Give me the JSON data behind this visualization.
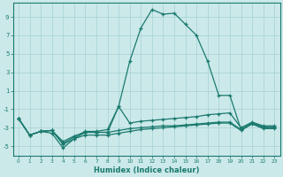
{
  "xlabel": "Humidex (Indice chaleur)",
  "ylabel": "",
  "bg_color": "#cce9ea",
  "grid_color": "#aad4d6",
  "line_color": "#1a7a6e",
  "xlim": [
    -0.5,
    23.5
  ],
  "ylim": [
    -6,
    10.5
  ],
  "yticks": [
    -5,
    -3,
    -1,
    1,
    3,
    5,
    7,
    9
  ],
  "xticks": [
    0,
    1,
    2,
    3,
    4,
    5,
    6,
    7,
    8,
    9,
    10,
    11,
    12,
    13,
    14,
    15,
    16,
    17,
    18,
    19,
    20,
    21,
    22,
    23
  ],
  "series": [
    {
      "x": [
        0,
        1,
        2,
        3,
        4,
        5,
        6,
        7,
        8,
        9,
        10,
        11,
        12,
        13,
        14,
        15,
        16,
        17,
        18,
        19,
        20,
        21,
        22,
        23
      ],
      "y": [
        -2,
        -3.8,
        -3.4,
        -3.3,
        -4.5,
        -3.9,
        -3.5,
        -3.5,
        -3.5,
        -3.3,
        -3.1,
        -3.0,
        -2.9,
        -2.8,
        -2.8,
        -2.7,
        -2.6,
        -2.5,
        -2.4,
        -2.4,
        -3.2,
        -2.5,
        -3.0,
        -3.0
      ]
    },
    {
      "x": [
        0,
        1,
        2,
        3,
        4,
        5,
        6,
        7,
        8,
        9,
        10,
        11,
        12,
        13,
        14,
        15,
        16,
        17,
        18,
        19,
        20,
        21,
        22,
        23
      ],
      "y": [
        -2,
        -3.8,
        -3.4,
        -3.6,
        -5.2,
        -4.2,
        -3.8,
        -3.8,
        -3.8,
        -3.6,
        -3.4,
        -3.2,
        -3.1,
        -3.0,
        -2.9,
        -2.8,
        -2.7,
        -2.6,
        -2.5,
        -2.5,
        -3.3,
        -2.6,
        -3.1,
        -3.1
      ]
    },
    {
      "x": [
        0,
        1,
        2,
        3,
        4,
        5,
        6,
        7,
        8,
        9,
        10,
        11,
        12,
        13,
        14,
        15,
        16,
        17,
        18,
        19,
        20,
        21,
        22,
        23
      ],
      "y": [
        -2,
        -3.8,
        -3.4,
        -3.3,
        -4.7,
        -4.0,
        -3.4,
        -3.4,
        -3.2,
        -0.7,
        -2.5,
        -2.3,
        -2.2,
        -2.1,
        -2.0,
        -1.9,
        -1.8,
        -1.6,
        -1.5,
        -1.4,
        -3.0,
        -2.4,
        -2.8,
        -2.8
      ]
    },
    {
      "x": [
        0,
        1,
        2,
        3,
        4,
        5,
        6,
        7,
        8,
        9,
        10,
        11,
        12,
        13,
        14,
        15,
        16,
        17,
        18,
        19,
        20,
        21,
        22,
        23
      ],
      "y": [
        -2,
        -3.8,
        -3.4,
        -3.3,
        -4.8,
        -4.2,
        -3.5,
        -3.5,
        -3.5,
        -0.7,
        4.2,
        7.8,
        9.8,
        9.3,
        9.4,
        8.2,
        7.0,
        4.2,
        0.5,
        0.5,
        -3.2,
        -2.5,
        -2.9,
        -2.9
      ]
    }
  ]
}
